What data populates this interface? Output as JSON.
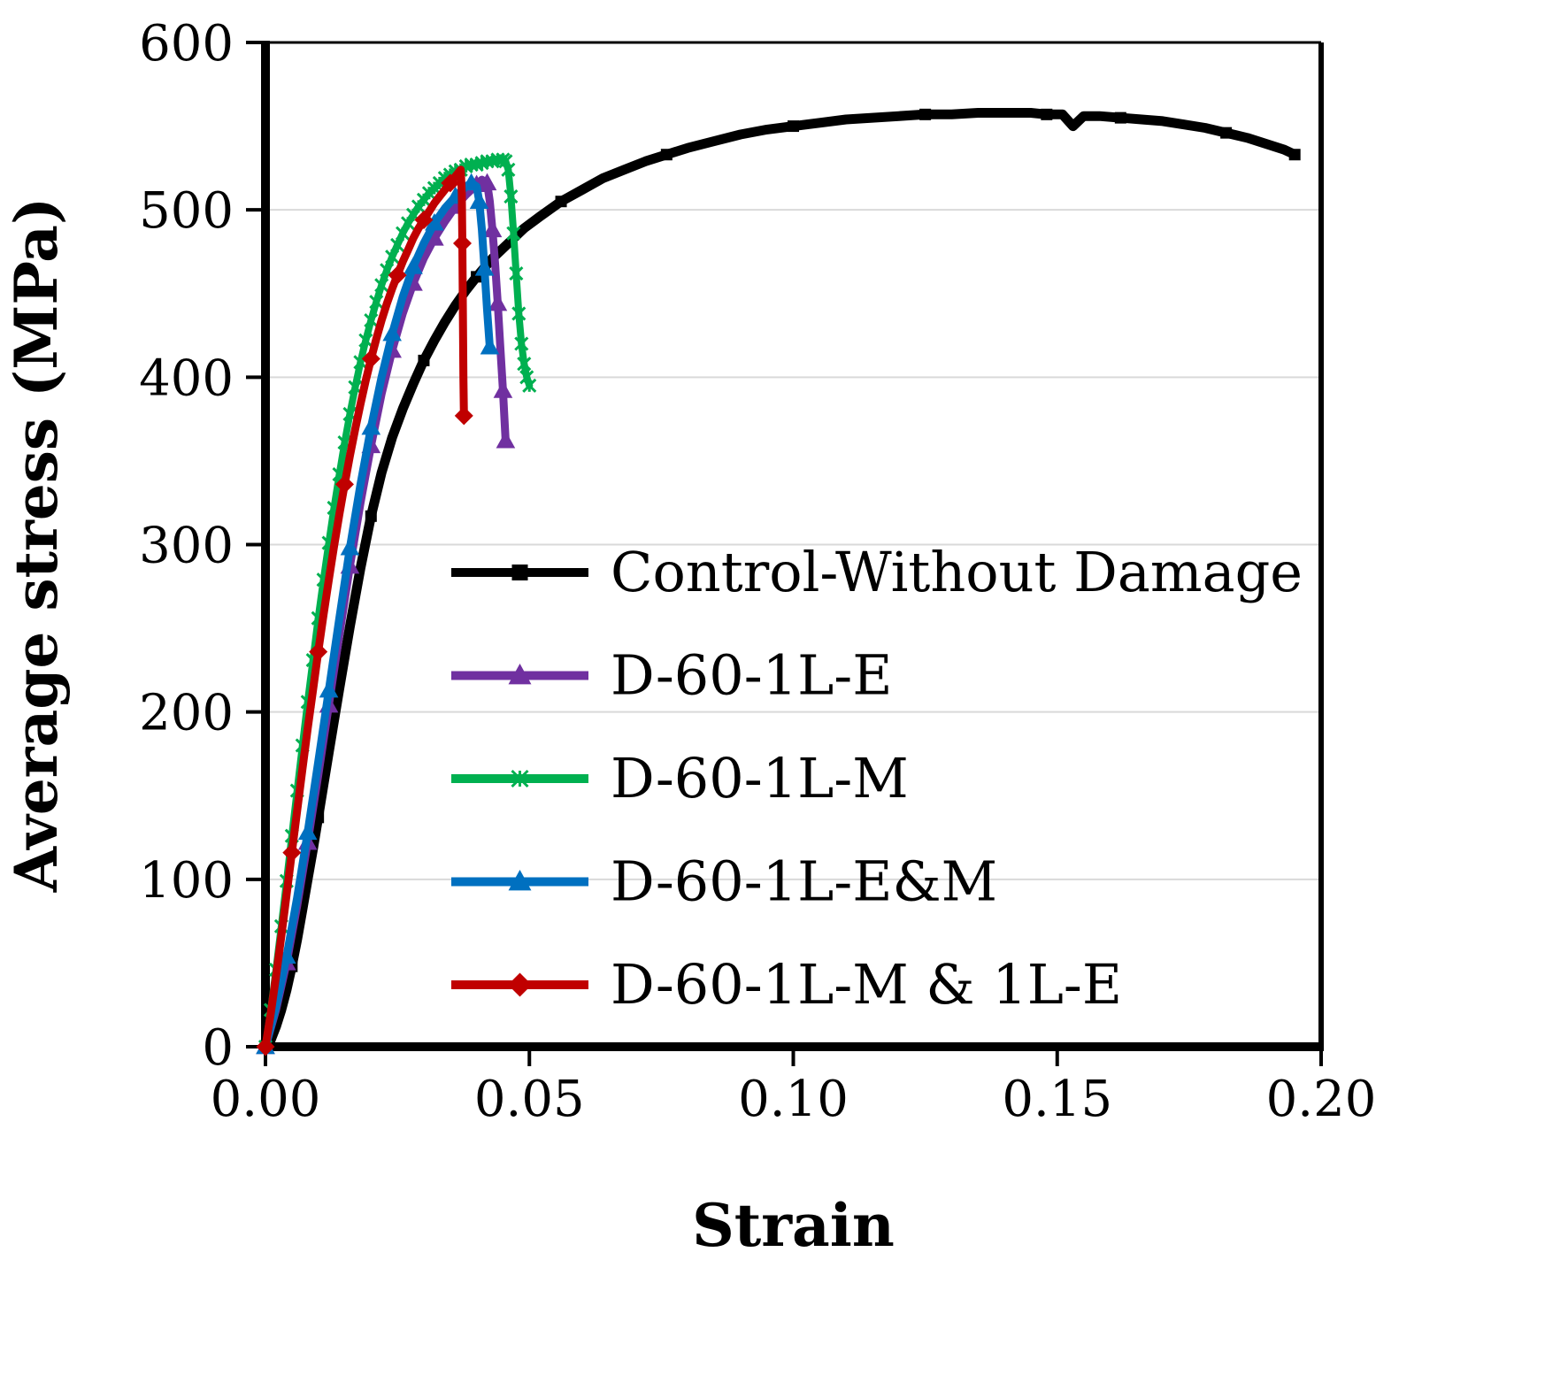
{
  "chart_data": {
    "type": "line",
    "title": "",
    "xlabel": "Strain",
    "ylabel": "Average stress (MPa)",
    "xlim": [
      0,
      0.2
    ],
    "ylim": [
      0,
      600
    ],
    "x_ticks": [
      0,
      0.05,
      0.1,
      0.15,
      0.2
    ],
    "x_tick_labels": [
      "0.00",
      "0.05",
      "0.10",
      "0.15",
      "0.20"
    ],
    "y_ticks": [
      0,
      100,
      200,
      300,
      400,
      500,
      600
    ],
    "y_tick_labels": [
      "0",
      "100",
      "200",
      "300",
      "400",
      "500",
      "600"
    ],
    "grid": "horizontal",
    "grid_color": "#d9d9d9",
    "frame_color": "#000000",
    "legend_position": "inside-center-right",
    "series": [
      {
        "name": "Control-Without Damage",
        "color": "#000000",
        "marker": "square",
        "line_width": 11,
        "marker_size": 13,
        "marker_every": 5,
        "points": [
          [
            0,
            0
          ],
          [
            0.001,
            4
          ],
          [
            0.002,
            12
          ],
          [
            0.003,
            22
          ],
          [
            0.004,
            34
          ],
          [
            0.005,
            48
          ],
          [
            0.006,
            64
          ],
          [
            0.007,
            82
          ],
          [
            0.008,
            100
          ],
          [
            0.009,
            118
          ],
          [
            0.01,
            137
          ],
          [
            0.012,
            176
          ],
          [
            0.014,
            214
          ],
          [
            0.016,
            251
          ],
          [
            0.018,
            286
          ],
          [
            0.02,
            317
          ],
          [
            0.022,
            343
          ],
          [
            0.024,
            364
          ],
          [
            0.026,
            381
          ],
          [
            0.028,
            396
          ],
          [
            0.03,
            410
          ],
          [
            0.032,
            422
          ],
          [
            0.034,
            433
          ],
          [
            0.036,
            443
          ],
          [
            0.038,
            452
          ],
          [
            0.04,
            460
          ],
          [
            0.043,
            471
          ],
          [
            0.046,
            480
          ],
          [
            0.049,
            489
          ],
          [
            0.052,
            496
          ],
          [
            0.056,
            505
          ],
          [
            0.06,
            512
          ],
          [
            0.064,
            519
          ],
          [
            0.068,
            524
          ],
          [
            0.072,
            529
          ],
          [
            0.076,
            533
          ],
          [
            0.08,
            537
          ],
          [
            0.085,
            541
          ],
          [
            0.09,
            545
          ],
          [
            0.095,
            548
          ],
          [
            0.1,
            550
          ],
          [
            0.105,
            552
          ],
          [
            0.11,
            554
          ],
          [
            0.115,
            555
          ],
          [
            0.12,
            556
          ],
          [
            0.125,
            557
          ],
          [
            0.13,
            557
          ],
          [
            0.135,
            558
          ],
          [
            0.14,
            558
          ],
          [
            0.145,
            558
          ],
          [
            0.148,
            557
          ],
          [
            0.151,
            557
          ],
          [
            0.153,
            550
          ],
          [
            0.155,
            556
          ],
          [
            0.158,
            556
          ],
          [
            0.162,
            555
          ],
          [
            0.166,
            554
          ],
          [
            0.17,
            553
          ],
          [
            0.174,
            551
          ],
          [
            0.178,
            549
          ],
          [
            0.182,
            546
          ],
          [
            0.186,
            543
          ],
          [
            0.19,
            539
          ],
          [
            0.193,
            536
          ],
          [
            0.195,
            533
          ]
        ]
      },
      {
        "name": "D-60-1L-E",
        "color": "#7030a0",
        "marker": "triangle",
        "line_width": 9,
        "marker_size": 15,
        "marker_every": 2,
        "points": [
          [
            0,
            0
          ],
          [
            0.002,
            22
          ],
          [
            0.004,
            50
          ],
          [
            0.006,
            84
          ],
          [
            0.008,
            122
          ],
          [
            0.01,
            162
          ],
          [
            0.012,
            204
          ],
          [
            0.014,
            246
          ],
          [
            0.016,
            287
          ],
          [
            0.018,
            325
          ],
          [
            0.02,
            359
          ],
          [
            0.022,
            390
          ],
          [
            0.024,
            416
          ],
          [
            0.026,
            438
          ],
          [
            0.028,
            456
          ],
          [
            0.03,
            471
          ],
          [
            0.032,
            483
          ],
          [
            0.034,
            493
          ],
          [
            0.036,
            502
          ],
          [
            0.038,
            509
          ],
          [
            0.04,
            515
          ],
          [
            0.041,
            518
          ],
          [
            0.042,
            516
          ],
          [
            0.0425,
            505
          ],
          [
            0.043,
            488
          ],
          [
            0.0435,
            468
          ],
          [
            0.044,
            444
          ],
          [
            0.0445,
            418
          ],
          [
            0.045,
            392
          ],
          [
            0.0455,
            362
          ]
        ]
      },
      {
        "name": "D-60-1L-M",
        "color": "#00b050",
        "marker": "x",
        "line_width": 8,
        "marker_size": 14,
        "marker_every": 1,
        "points": [
          [
            0,
            0
          ],
          [
            0.001,
            22
          ],
          [
            0.002,
            46
          ],
          [
            0.003,
            72
          ],
          [
            0.004,
            99
          ],
          [
            0.005,
            126
          ],
          [
            0.006,
            153
          ],
          [
            0.007,
            180
          ],
          [
            0.008,
            206
          ],
          [
            0.009,
            231
          ],
          [
            0.01,
            256
          ],
          [
            0.011,
            279
          ],
          [
            0.012,
            301
          ],
          [
            0.013,
            322
          ],
          [
            0.014,
            342
          ],
          [
            0.015,
            361
          ],
          [
            0.016,
            378
          ],
          [
            0.017,
            394
          ],
          [
            0.018,
            409
          ],
          [
            0.019,
            422
          ],
          [
            0.02,
            434
          ],
          [
            0.021,
            445
          ],
          [
            0.022,
            455
          ],
          [
            0.023,
            464
          ],
          [
            0.024,
            472
          ],
          [
            0.025,
            479
          ],
          [
            0.026,
            486
          ],
          [
            0.027,
            492
          ],
          [
            0.028,
            497
          ],
          [
            0.029,
            502
          ],
          [
            0.03,
            506
          ],
          [
            0.031,
            510
          ],
          [
            0.032,
            513
          ],
          [
            0.033,
            516
          ],
          [
            0.034,
            519
          ],
          [
            0.035,
            521
          ],
          [
            0.036,
            523
          ],
          [
            0.037,
            524
          ],
          [
            0.038,
            526
          ],
          [
            0.039,
            527
          ],
          [
            0.04,
            527
          ],
          [
            0.041,
            528
          ],
          [
            0.042,
            529
          ],
          [
            0.043,
            529
          ],
          [
            0.044,
            530
          ],
          [
            0.045,
            530
          ],
          [
            0.0455,
            529
          ],
          [
            0.046,
            524
          ],
          [
            0.0465,
            508
          ],
          [
            0.047,
            486
          ],
          [
            0.0475,
            462
          ],
          [
            0.048,
            438
          ],
          [
            0.0485,
            420
          ],
          [
            0.049,
            408
          ],
          [
            0.0495,
            400
          ],
          [
            0.05,
            395
          ]
        ]
      },
      {
        "name": "D-60-1L-E&M",
        "color": "#0070c0",
        "marker": "triangle",
        "line_width": 9,
        "marker_size": 15,
        "marker_every": 2,
        "points": [
          [
            0,
            0
          ],
          [
            0.002,
            24
          ],
          [
            0.004,
            54
          ],
          [
            0.006,
            89
          ],
          [
            0.008,
            128
          ],
          [
            0.01,
            170
          ],
          [
            0.012,
            213
          ],
          [
            0.014,
            256
          ],
          [
            0.016,
            298
          ],
          [
            0.018,
            336
          ],
          [
            0.02,
            370
          ],
          [
            0.022,
            400
          ],
          [
            0.024,
            426
          ],
          [
            0.026,
            448
          ],
          [
            0.028,
            466
          ],
          [
            0.03,
            480
          ],
          [
            0.032,
            492
          ],
          [
            0.034,
            501
          ],
          [
            0.036,
            508
          ],
          [
            0.038,
            514
          ],
          [
            0.039,
            516
          ],
          [
            0.04,
            514
          ],
          [
            0.0405,
            505
          ],
          [
            0.041,
            488
          ],
          [
            0.0415,
            465
          ],
          [
            0.042,
            440
          ],
          [
            0.0425,
            418
          ]
        ]
      },
      {
        "name": "D-60-1L-M & 1L-E",
        "color": "#c00000",
        "marker": "diamond",
        "line_width": 9,
        "marker_size": 14,
        "marker_every": 5,
        "points": [
          [
            0,
            0
          ],
          [
            0.001,
            20
          ],
          [
            0.002,
            42
          ],
          [
            0.003,
            66
          ],
          [
            0.004,
            91
          ],
          [
            0.005,
            116
          ],
          [
            0.006,
            141
          ],
          [
            0.007,
            166
          ],
          [
            0.008,
            190
          ],
          [
            0.009,
            213
          ],
          [
            0.01,
            236
          ],
          [
            0.011,
            258
          ],
          [
            0.012,
            279
          ],
          [
            0.013,
            299
          ],
          [
            0.014,
            318
          ],
          [
            0.015,
            336
          ],
          [
            0.016,
            353
          ],
          [
            0.017,
            369
          ],
          [
            0.018,
            384
          ],
          [
            0.019,
            398
          ],
          [
            0.02,
            411
          ],
          [
            0.021,
            423
          ],
          [
            0.022,
            434
          ],
          [
            0.023,
            444
          ],
          [
            0.024,
            453
          ],
          [
            0.025,
            461
          ],
          [
            0.026,
            469
          ],
          [
            0.027,
            476
          ],
          [
            0.028,
            483
          ],
          [
            0.029,
            489
          ],
          [
            0.03,
            494
          ],
          [
            0.031,
            499
          ],
          [
            0.032,
            504
          ],
          [
            0.033,
            508
          ],
          [
            0.034,
            512
          ],
          [
            0.035,
            516
          ],
          [
            0.036,
            520
          ],
          [
            0.0365,
            522
          ],
          [
            0.037,
            524
          ],
          [
            0.0372,
            510
          ],
          [
            0.0373,
            480
          ],
          [
            0.0374,
            440
          ],
          [
            0.0375,
            400
          ],
          [
            0.0376,
            377
          ]
        ]
      }
    ]
  }
}
